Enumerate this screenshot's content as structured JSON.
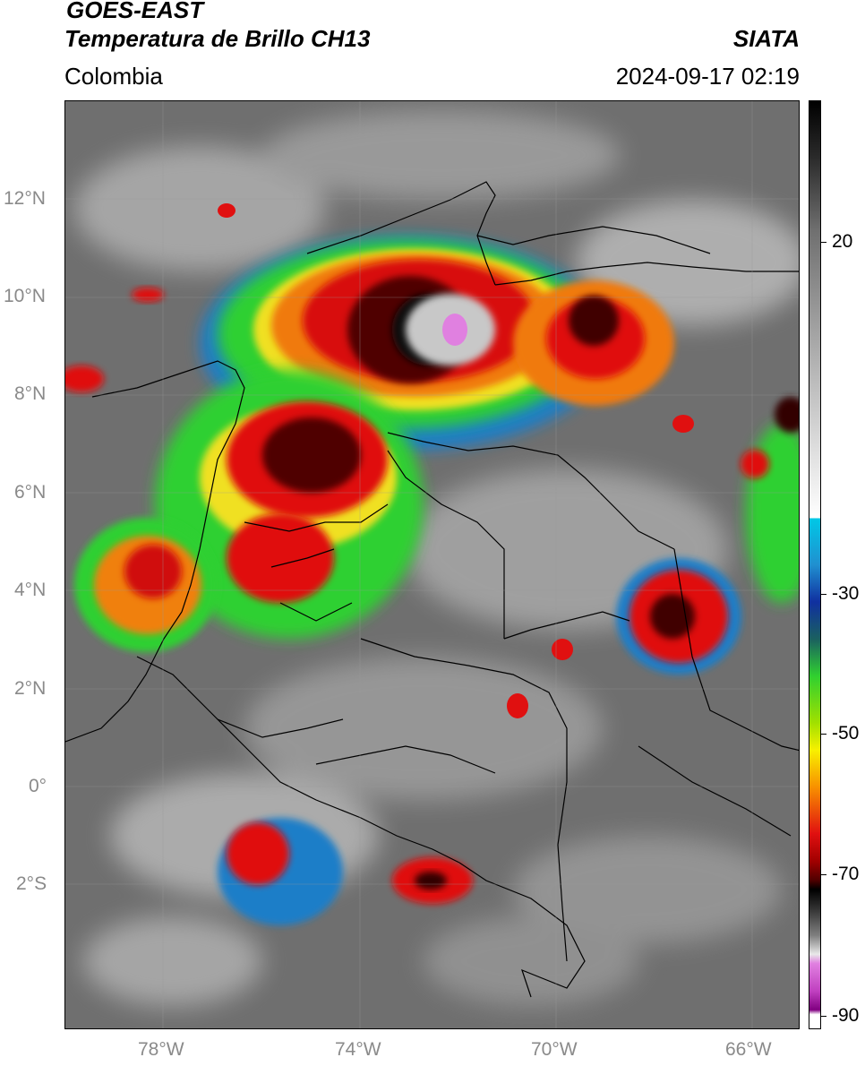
{
  "header": {
    "satellite": "GOES-EAST",
    "product": "Temperatura de Brillo CH13",
    "region": "Colombia",
    "agency": "SIATA",
    "datetime": "2024-09-17 02:19"
  },
  "map": {
    "lat_labels": [
      "12°N",
      "10°N",
      "8°N",
      "6°N",
      "4°N",
      "2°N",
      "0°",
      "2°S"
    ],
    "lon_labels": [
      "78°W",
      "74°W",
      "70°W",
      "66°W"
    ],
    "lat_range": [
      -3.4,
      15.8
    ],
    "lon_range": [
      -79.6,
      -64.9
    ]
  },
  "colorbar": {
    "tick_labels": [
      "20",
      "-30",
      "-50",
      "-70",
      "-90"
    ],
    "range": [
      -92,
      38
    ],
    "colors": {
      "warm_gray": "#9a9a9a",
      "cyan": "#00c8e6",
      "blue": "#1030a0",
      "green": "#30d030",
      "yellow": "#f8f000",
      "orange": "#f89000",
      "red": "#e01010",
      "dark_red": "#600000",
      "black": "#000000",
      "magenta": "#e080e0",
      "purple": "#800080"
    }
  }
}
